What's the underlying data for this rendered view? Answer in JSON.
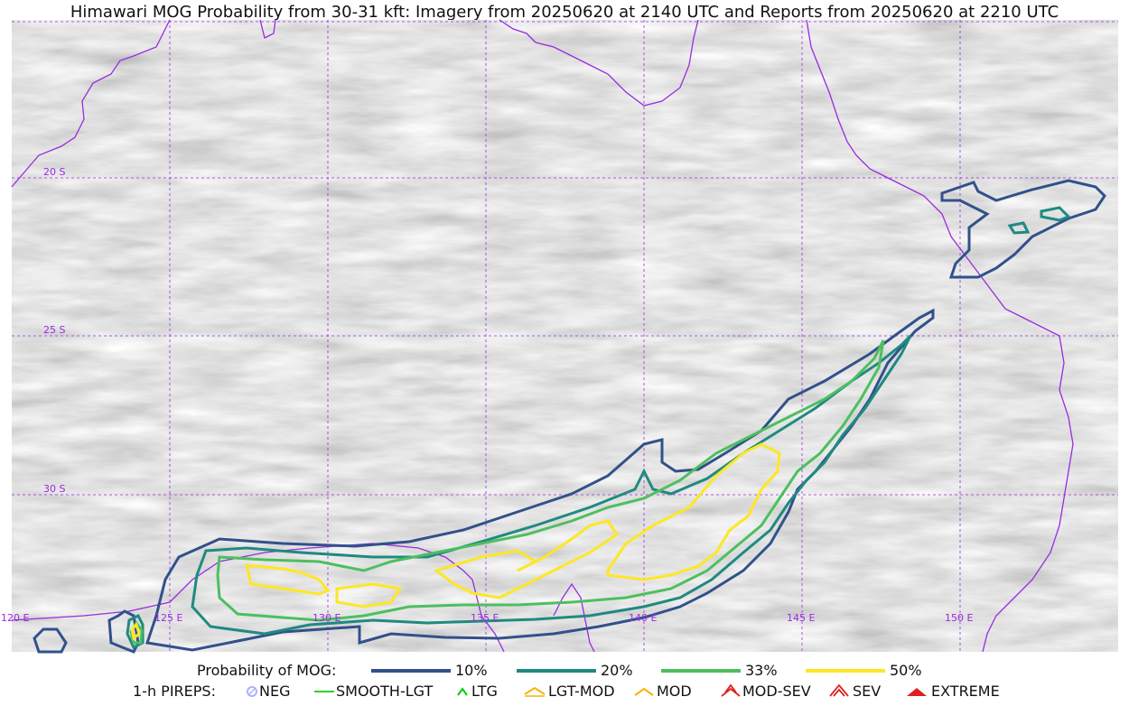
{
  "title": "Himawari MOG Probability from 30-31 kft: Imagery from 20250620 at 2140 UTC and Reports from 20250620 at 2210 UTC",
  "map": {
    "lat_labels": [
      "20 S",
      "25 S",
      "30 S"
    ],
    "lon_labels": [
      "120 E",
      "125 E",
      "130 E",
      "135 E",
      "140 E",
      "145 E",
      "150 E"
    ],
    "colors": {
      "p10": "#31518a",
      "p20": "#1f8a80",
      "p33": "#4dbf5f",
      "p50": "#fde725",
      "coast": "#9a2be0",
      "grid": "#9a2be0",
      "background": "#bdbdbd"
    }
  },
  "legend": {
    "probability_label": "Probability of MOG:",
    "probability_items": [
      {
        "label": "10%",
        "color": "#31518a"
      },
      {
        "label": "20%",
        "color": "#1f8a80"
      },
      {
        "label": "33%",
        "color": "#4dbf5f"
      },
      {
        "label": "50%",
        "color": "#fde725"
      }
    ],
    "pireps_label": "1-h PIREPS:",
    "pireps_items": [
      {
        "label": "NEG",
        "icon": "neg-circle-icon",
        "color": "#b0b0ff"
      },
      {
        "label": "SMOOTH-LGT",
        "icon": "smooth-line-icon",
        "color": "#33cc33"
      },
      {
        "label": "LTG",
        "icon": "ltg-caret-icon",
        "color": "#00cc00"
      },
      {
        "label": "LGT-MOD",
        "icon": "lgt-mod-caret-icon",
        "color": "#f5b400"
      },
      {
        "label": "MOD",
        "icon": "mod-caret-icon",
        "color": "#f5b400"
      },
      {
        "label": "MOD-SEV",
        "icon": "mod-sev-caret-icon",
        "color": "#e02020"
      },
      {
        "label": "SEV",
        "icon": "sev-caret-icon",
        "color": "#e02020"
      },
      {
        "label": "EXTREME",
        "icon": "extreme-caret-icon",
        "color": "#e02020"
      }
    ]
  }
}
